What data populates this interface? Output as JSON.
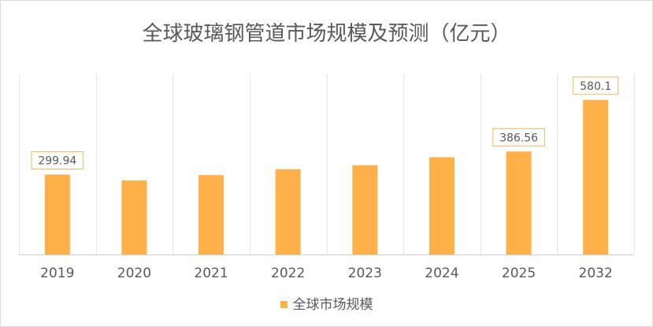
{
  "chart_data": {
    "type": "bar",
    "title": "全球玻璃钢管道市场规模及预测（亿元）",
    "categories": [
      "2019",
      "2020",
      "2021",
      "2022",
      "2023",
      "2024",
      "2025",
      "2032"
    ],
    "series": [
      {
        "name": "全球市场规模",
        "values": [
          299.94,
          278,
          298,
          320,
          335,
          365,
          386.56,
          580.1
        ],
        "data_labels": [
          "299.94",
          "",
          "",
          "",
          "",
          "",
          "386.56",
          "580.1"
        ]
      }
    ],
    "ylim": [
      0,
      680
    ],
    "grid": "vertical",
    "legend_position": "bottom",
    "colors": {
      "bar": "#ffb048",
      "label_border": "#f4b65a",
      "gridline": "#e6e6e6",
      "axis": "#cfcfcf",
      "text": "#595959"
    }
  }
}
